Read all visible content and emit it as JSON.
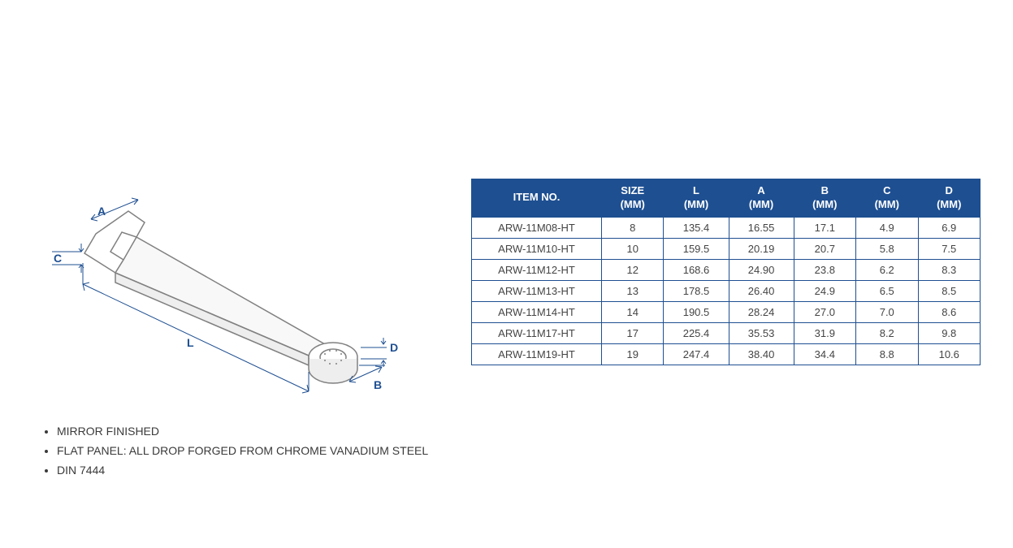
{
  "diagram": {
    "labels": {
      "A": "A",
      "B": "B",
      "C": "C",
      "D": "D",
      "L": "L"
    },
    "label_color": "#1e4f91",
    "line_color": "#1e4f91",
    "wrench_stroke": "#808080",
    "wrench_fill": "#ffffff"
  },
  "features": {
    "items": [
      "MIRROR FINISHED",
      "FLAT PANEL: ALL DROP FORGED FROM CHROME VANADIUM STEEL",
      "DIN 7444"
    ],
    "text_color": "#3a3a3a"
  },
  "table": {
    "header_bg": "#1e4f91",
    "header_fg": "#ffffff",
    "border_color": "#1e4f91",
    "cell_fg": "#444444",
    "columns": [
      "ITEM NO.",
      "SIZE (MM)",
      "L (MM)",
      "A (MM)",
      "B (MM)",
      "C (MM)",
      "D (MM)"
    ],
    "rows": [
      [
        "ARW-11M08-HT",
        "8",
        "135.4",
        "16.55",
        "17.1",
        "4.9",
        "6.9"
      ],
      [
        "ARW-11M10-HT",
        "10",
        "159.5",
        "20.19",
        "20.7",
        "5.8",
        "7.5"
      ],
      [
        "ARW-11M12-HT",
        "12",
        "168.6",
        "24.90",
        "23.8",
        "6.2",
        "8.3"
      ],
      [
        "ARW-11M13-HT",
        "13",
        "178.5",
        "26.40",
        "24.9",
        "6.5",
        "8.5"
      ],
      [
        "ARW-11M14-HT",
        "14",
        "190.5",
        "28.24",
        "27.0",
        "7.0",
        "8.6"
      ],
      [
        "ARW-11M17-HT",
        "17",
        "225.4",
        "35.53",
        "31.9",
        "8.2",
        "9.8"
      ],
      [
        "ARW-11M19-HT",
        "19",
        "247.4",
        "38.40",
        "34.4",
        "8.8",
        "10.6"
      ]
    ]
  }
}
